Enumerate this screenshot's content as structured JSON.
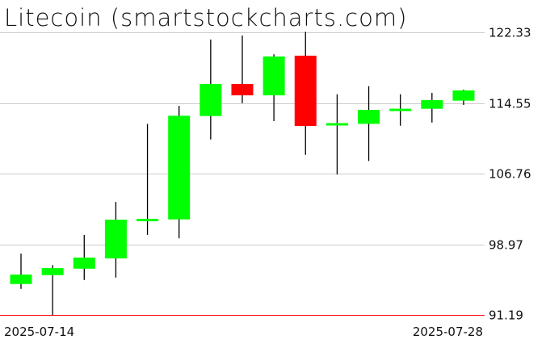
{
  "chart_data": {
    "type": "candlestick",
    "title": "Litecoin (smartstockcharts.com)",
    "x_tick_labels": [
      "2025-07-14",
      "2025-07-28"
    ],
    "y_tick_labels": [
      "122.33",
      "114.55",
      "106.76",
      "98.97",
      "91.19"
    ],
    "ylim": [
      91.19,
      122.33
    ],
    "grid": true,
    "reference_line": {
      "value": 91.19,
      "label": "91.19",
      "color": "#ff0000"
    },
    "colors": {
      "up": "#00ff00",
      "down": "#ff0000",
      "wick": "#000000",
      "grid": "#cccccc"
    },
    "candles": [
      {
        "date": "2025-07-14",
        "open": 94.62,
        "high": 97.97,
        "low": 94.08,
        "close": 95.66
      },
      {
        "date": "2025-07-15",
        "open": 95.6,
        "high": 96.7,
        "low": 91.19,
        "close": 96.37
      },
      {
        "date": "2025-07-16",
        "open": 96.31,
        "high": 100.02,
        "low": 95.06,
        "close": 97.53
      },
      {
        "date": "2025-07-17",
        "open": 97.44,
        "high": 103.67,
        "low": 95.33,
        "close": 101.71
      },
      {
        "date": "2025-07-18",
        "open": 101.64,
        "high": 112.27,
        "low": 100.04,
        "close": 101.8
      },
      {
        "date": "2025-07-19",
        "open": 101.74,
        "high": 114.26,
        "low": 99.66,
        "close": 113.16
      },
      {
        "date": "2025-07-20",
        "open": 113.13,
        "high": 121.56,
        "low": 110.55,
        "close": 116.66
      },
      {
        "date": "2025-07-21",
        "open": 116.66,
        "high": 122.0,
        "low": 114.55,
        "close": 115.41
      },
      {
        "date": "2025-07-22",
        "open": 115.41,
        "high": 119.93,
        "low": 112.57,
        "close": 119.69
      },
      {
        "date": "2025-07-23",
        "open": 119.78,
        "high": 122.4,
        "low": 108.86,
        "close": 112.03
      },
      {
        "date": "2025-07-24",
        "open": 112.2,
        "high": 115.53,
        "low": 106.69,
        "close": 112.35
      },
      {
        "date": "2025-07-25",
        "open": 112.27,
        "high": 116.42,
        "low": 108.18,
        "close": 113.81
      },
      {
        "date": "2025-07-26",
        "open": 113.8,
        "high": 115.53,
        "low": 112.06,
        "close": 113.94
      },
      {
        "date": "2025-07-27",
        "open": 113.93,
        "high": 115.68,
        "low": 112.42,
        "close": 114.88
      },
      {
        "date": "2025-07-28",
        "open": 114.82,
        "high": 116.04,
        "low": 114.35,
        "close": 115.95
      }
    ]
  }
}
